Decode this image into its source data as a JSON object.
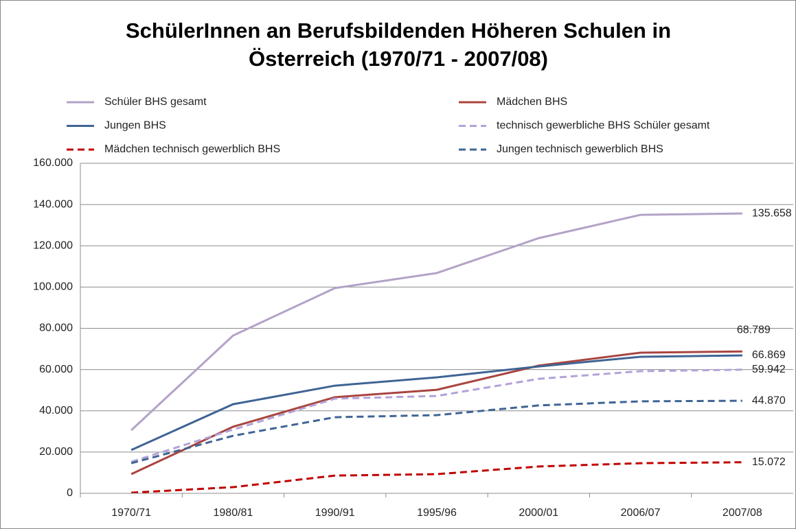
{
  "chart_data": {
    "type": "line",
    "title": "SchülerInnen an Berufsbildenden Höheren Schulen in Österreich (1970/71 - 2007/08)",
    "categories": [
      "1970/71",
      "1980/81",
      "1990/91",
      "1995/96",
      "2000/01",
      "2006/07",
      "2007/08"
    ],
    "series": [
      {
        "name": "Schüler BHS gesamt",
        "color": "#b3a2c7",
        "dashed": false,
        "values": [
          30600,
          76500,
          99500,
          106800,
          123700,
          135000,
          135658
        ],
        "value_labels": [
          null,
          null,
          null,
          null,
          null,
          null,
          "135.658"
        ]
      },
      {
        "name": "Mädchen BHS",
        "color": "#a9443f",
        "dashed": false,
        "values": [
          9300,
          32300,
          46600,
          50200,
          61900,
          68200,
          68789
        ],
        "value_labels": [
          null,
          null,
          null,
          null,
          null,
          null,
          "68.789"
        ]
      },
      {
        "name": "Jungen BHS",
        "color": "#3f6494",
        "dashed": false,
        "values": [
          21000,
          43200,
          52200,
          56200,
          61500,
          66200,
          66869
        ],
        "value_labels": [
          null,
          null,
          null,
          null,
          null,
          null,
          "66.869"
        ]
      },
      {
        "name": "technisch gewerbliche BHS Schüler gesamt",
        "color": "#b3a2d9",
        "dashed": true,
        "values": [
          15300,
          30900,
          45900,
          47200,
          55500,
          59200,
          59942
        ],
        "value_labels": [
          null,
          null,
          null,
          null,
          null,
          null,
          "59.942"
        ]
      },
      {
        "name": "Mädchen technisch gewerblich BHS",
        "color": "#c00000",
        "dashed": true,
        "values": [
          300,
          3000,
          8600,
          9300,
          13000,
          14600,
          15072
        ],
        "value_labels": [
          null,
          null,
          null,
          null,
          null,
          null,
          "15.072"
        ]
      },
      {
        "name": "Jungen technisch gewerblich BHS",
        "color": "#3f6494",
        "dashed": true,
        "values": [
          14600,
          27900,
          36900,
          37900,
          42600,
          44600,
          44870
        ],
        "value_labels": [
          null,
          null,
          null,
          null,
          null,
          null,
          "44.870"
        ]
      }
    ],
    "ylim": [
      0,
      160000
    ],
    "yticks": [
      0,
      {
        "value": 20000,
        "label": "20.000"
      },
      {
        "value": 40000,
        "label": "40.000"
      },
      {
        "value": 60000,
        "label": "60.000"
      },
      {
        "value": 80000,
        "label": "80.000"
      },
      {
        "value": 100000,
        "label": "100.000"
      },
      {
        "value": 120000,
        "label": "120.000"
      },
      {
        "value": 140000,
        "label": "140.000"
      },
      {
        "value": 160000,
        "label": "160.000"
      }
    ],
    "grid": true,
    "legend": "top"
  }
}
